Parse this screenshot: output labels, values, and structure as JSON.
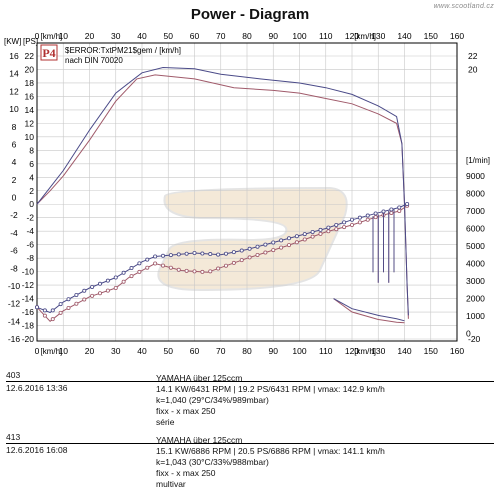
{
  "title": "Power - Diagram",
  "watermark": "www.scootland.cz",
  "chart_data": {
    "type": "line",
    "badge": "P4",
    "error_label": "$ERROR:TxtPM21$gem / [km/h]",
    "standard_label": "nach DIN 70020",
    "x_axis_unit": "[km/h]",
    "x_range": [
      0,
      160
    ],
    "x_ticks": [
      0,
      10,
      20,
      30,
      40,
      50,
      60,
      70,
      80,
      90,
      100,
      110,
      120,
      130,
      140,
      150,
      160
    ],
    "left_axis": {
      "unit_kw": "[KW]",
      "unit_ps": "[PS]",
      "kw_ticks": [
        16,
        14,
        12,
        10,
        8,
        6,
        4,
        2,
        0,
        -2,
        -4,
        -6,
        -8,
        -10,
        -12,
        -14,
        -16
      ],
      "ps_ticks": [
        22,
        20,
        18,
        16,
        14,
        12,
        10,
        8,
        6,
        4,
        2,
        0,
        -2,
        -4,
        -6,
        -8,
        -10,
        -12,
        -14,
        -16,
        -18,
        -20
      ]
    },
    "right_axis": {
      "unit": "[1/min]",
      "ticks": [
        9000,
        8000,
        7000,
        6000,
        5000,
        4000,
        3000,
        2000,
        1000,
        0
      ],
      "ps_ticks": [
        22,
        20,
        -20
      ]
    },
    "series": [
      {
        "name": "403",
        "color": "#a05a6a",
        "power_ps": [
          [
            0,
            0
          ],
          [
            5,
            2
          ],
          [
            10,
            4.2
          ],
          [
            20,
            9.5
          ],
          [
            30,
            15.3
          ],
          [
            38,
            18.6
          ],
          [
            45,
            19.2
          ],
          [
            60,
            18.6
          ],
          [
            75,
            17.3
          ],
          [
            90,
            16.9
          ],
          [
            100,
            16.5
          ],
          [
            110,
            15.7
          ],
          [
            120,
            14.9
          ],
          [
            130,
            13.4
          ],
          [
            137,
            12
          ],
          [
            139,
            9
          ],
          [
            140,
            0
          ],
          [
            141,
            -12
          ],
          [
            141.5,
            -17
          ]
        ],
        "loss_ps": [
          [
            113,
            -14
          ],
          [
            120,
            -16
          ],
          [
            130,
            -17.1
          ],
          [
            137,
            -17.5
          ],
          [
            140,
            -17.6
          ]
        ],
        "rpm": [
          [
            0,
            1500
          ],
          [
            5,
            700
          ],
          [
            10,
            1300
          ],
          [
            15,
            1700
          ],
          [
            20,
            2100
          ],
          [
            30,
            2600
          ],
          [
            35,
            3200
          ],
          [
            45,
            4000
          ],
          [
            55,
            3600
          ],
          [
            65,
            3500
          ],
          [
            80,
            4300
          ],
          [
            95,
            5000
          ],
          [
            110,
            5800
          ],
          [
            120,
            6200
          ],
          [
            130,
            6700
          ],
          [
            138,
            7000
          ],
          [
            141,
            7300
          ]
        ]
      },
      {
        "name": "413",
        "color": "#4a4a88",
        "power_ps": [
          [
            0,
            0
          ],
          [
            5,
            2.5
          ],
          [
            10,
            5
          ],
          [
            20,
            11
          ],
          [
            30,
            16.5
          ],
          [
            40,
            19.5
          ],
          [
            48,
            20.3
          ],
          [
            60,
            20.1
          ],
          [
            70,
            19.3
          ],
          [
            85,
            18.6
          ],
          [
            100,
            18
          ],
          [
            110,
            17.3
          ],
          [
            120,
            16.3
          ],
          [
            130,
            14.6
          ],
          [
            137,
            13
          ],
          [
            139,
            9
          ],
          [
            140,
            0
          ],
          [
            141,
            -12
          ],
          [
            141.5,
            -16.5
          ]
        ],
        "loss_ps": [
          [
            113,
            -14
          ],
          [
            120,
            -15.5
          ],
          [
            130,
            -16.5
          ],
          [
            137,
            -17
          ],
          [
            140,
            -17.3
          ]
        ],
        "rpm": [
          [
            0,
            1500
          ],
          [
            5,
            1200
          ],
          [
            10,
            1800
          ],
          [
            20,
            2600
          ],
          [
            30,
            3200
          ],
          [
            40,
            4100
          ],
          [
            45,
            4400
          ],
          [
            60,
            4600
          ],
          [
            70,
            4500
          ],
          [
            80,
            4800
          ],
          [
            90,
            5200
          ],
          [
            100,
            5600
          ],
          [
            110,
            6000
          ],
          [
            120,
            6500
          ],
          [
            130,
            6900
          ],
          [
            138,
            7200
          ],
          [
            141,
            7400
          ]
        ]
      }
    ]
  },
  "records": [
    {
      "id": "403",
      "date": "12.6.2016  13:36",
      "model": "YAMAHA über 125ccm",
      "stats": "14.1 KW/6431 RPM  |  19.2 PS/6431 RPM  |  vmax: 142.9 km/h",
      "correction": "k=1,040 (29°C/34%/989mbar)",
      "setup": "fixx - x max 250",
      "note": "série"
    },
    {
      "id": "413",
      "date": "12.6.2016  16:08",
      "model": "YAMAHA über 125ccm",
      "stats": "15.1 KW/6886 RPM  |  20.5 PS/6886 RPM  |  vmax: 141.1 km/h",
      "correction": "k=1,043 (30°C/33%/988mbar)",
      "setup": "fixx - x max 250",
      "note": "multivar"
    }
  ]
}
